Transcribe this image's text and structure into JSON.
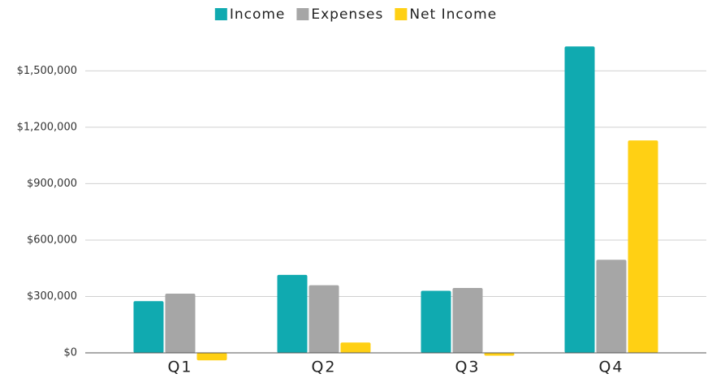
{
  "chart_data": {
    "type": "bar",
    "categories": [
      "Q1",
      "Q2",
      "Q3",
      "Q4"
    ],
    "series": [
      {
        "name": "Income",
        "color": "#10aab0",
        "values": [
          275000,
          415000,
          330000,
          1630000
        ]
      },
      {
        "name": "Expenses",
        "color": "#a6a6a6",
        "values": [
          315000,
          360000,
          345000,
          495000
        ]
      },
      {
        "name": "Net Income",
        "color": "#ffd014",
        "values": [
          -40000,
          55000,
          -15000,
          1130000
        ]
      }
    ],
    "ylim": [
      -50000,
      1700000
    ],
    "yticks": [
      {
        "value": 0,
        "label": "$0"
      },
      {
        "value": 300000,
        "label": "$300,000"
      },
      {
        "value": 600000,
        "label": "$600,000"
      },
      {
        "value": 900000,
        "label": "$900,000"
      },
      {
        "value": 1200000,
        "label": "$1,200,000"
      },
      {
        "value": 1500000,
        "label": "$1,500,000"
      }
    ],
    "grid": true,
    "legend": "top"
  }
}
